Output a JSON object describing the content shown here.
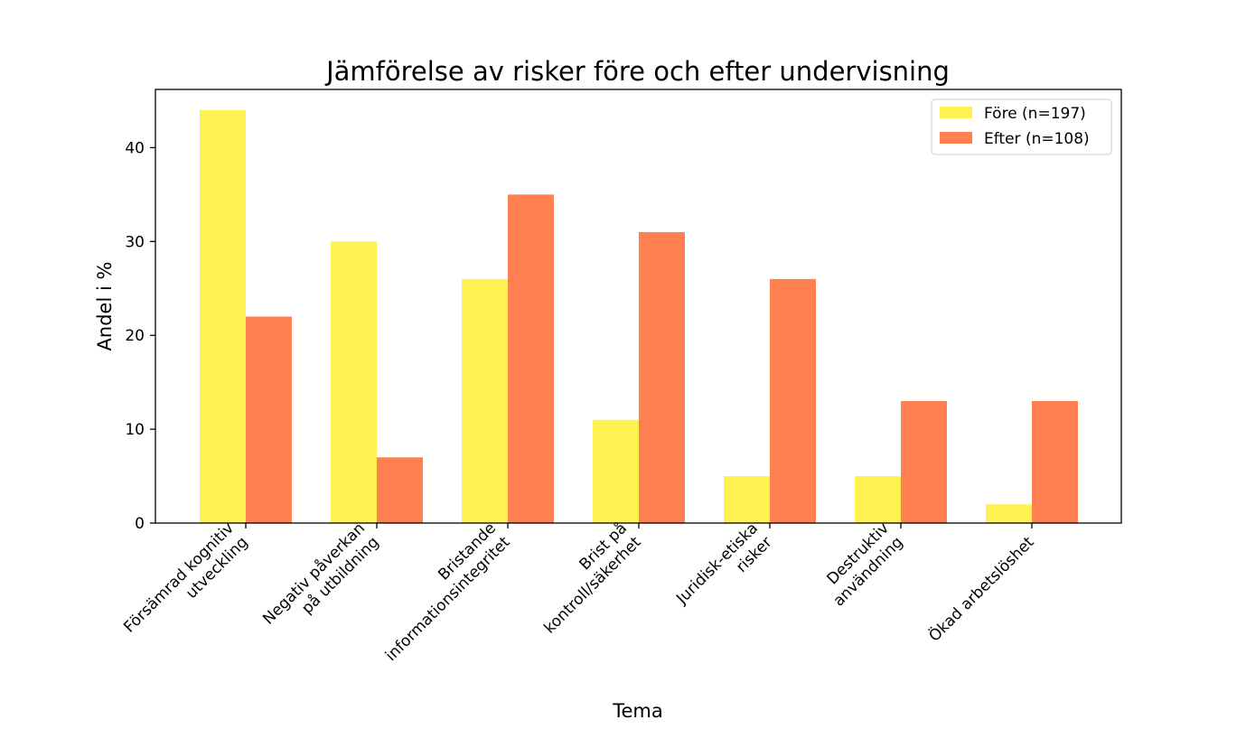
{
  "chart_data": {
    "type": "bar",
    "title": "Jämförelse av risker före och efter undervisning",
    "xlabel": "Tema",
    "ylabel": "Andel i %",
    "categories": [
      [
        "Försämrad kognitiv",
        "utveckling"
      ],
      [
        "Negativ påverkan",
        "på utbildning"
      ],
      [
        "Bristande",
        "informationsintegritet"
      ],
      [
        "Brist på",
        "kontroll/säkerhet"
      ],
      [
        "Juridisk-etiska",
        "risker"
      ],
      [
        "Destruktiv",
        "användning"
      ],
      [
        "Ökad arbetslöshet"
      ]
    ],
    "series": [
      {
        "name": "Före (n=197)",
        "color": "#fff150",
        "values": [
          44,
          30,
          26,
          11,
          5,
          5,
          2
        ]
      },
      {
        "name": "Efter (n=108)",
        "color": "#ff7f50",
        "values": [
          22,
          7,
          35,
          31,
          26,
          13,
          13
        ]
      }
    ],
    "ylim": [
      0,
      46.2
    ],
    "yticks": [
      0,
      10,
      20,
      30,
      40
    ],
    "grid": false,
    "legend_position": "top-right"
  }
}
